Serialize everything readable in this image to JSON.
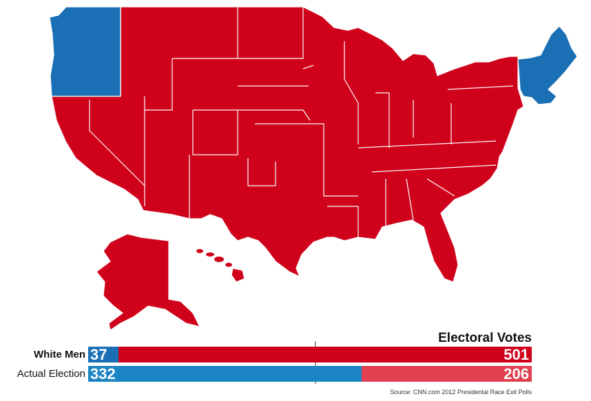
{
  "colors": {
    "dem": "#1a6fb5",
    "rep": "#d0021b",
    "rep_light": "#e0404f",
    "bar_blue": "#1b84c4"
  },
  "legend": {
    "title": "Electoral Votes",
    "rows": [
      {
        "label": "White Men",
        "dem": 37,
        "rep": 501,
        "dem_text": "37",
        "rep_text": "501"
      },
      {
        "label": "Actual Election",
        "dem": 332,
        "rep": 206,
        "dem_text": "332",
        "rep_text": "206"
      }
    ]
  },
  "source": "Source: CNN.com 2012 Presidental Race Exit Polls"
}
